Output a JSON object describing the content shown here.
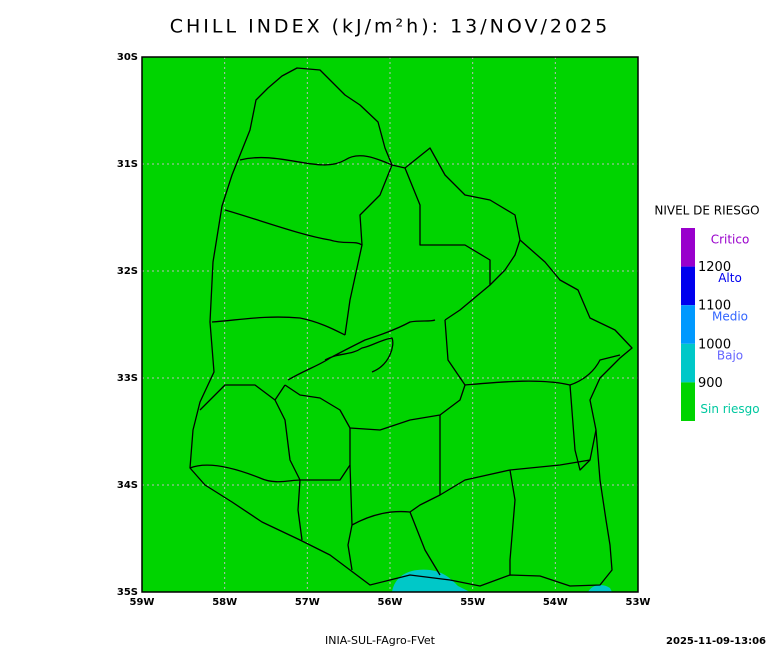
{
  "title": "CHILL INDEX (kJ/m²h): 13/NOV/2025",
  "map": {
    "lat_ticks": [
      "30S",
      "31S",
      "32S",
      "33S",
      "34S",
      "35S"
    ],
    "lon_ticks": [
      "59W",
      "58W",
      "57W",
      "56W",
      "55W",
      "54W",
      "53W"
    ],
    "background_color": "#00d400",
    "low_risk_color": "#00c8c8"
  },
  "legend": {
    "title": "NIVEL DE RIESGO",
    "levels": [
      {
        "label": "Critico",
        "color": "#9900cc",
        "label_color": "#9900cc"
      },
      {
        "label": "Alto",
        "color": "#0000ee",
        "label_color": "#0000ee"
      },
      {
        "label": "Medio",
        "color": "#0099ff",
        "label_color": "#3366ff"
      },
      {
        "label": "Bajo",
        "color": "#00c8c8",
        "label_color": "#6666ff"
      },
      {
        "label": "Sin riesgo",
        "color": "#00d400",
        "label_color": "#00c8a0"
      }
    ],
    "thresholds": [
      1200,
      1100,
      1000,
      900
    ]
  },
  "footer": {
    "source": "INIA-SUL-FAgro-FVet",
    "timestamp": "2025-11-09-13:06"
  }
}
